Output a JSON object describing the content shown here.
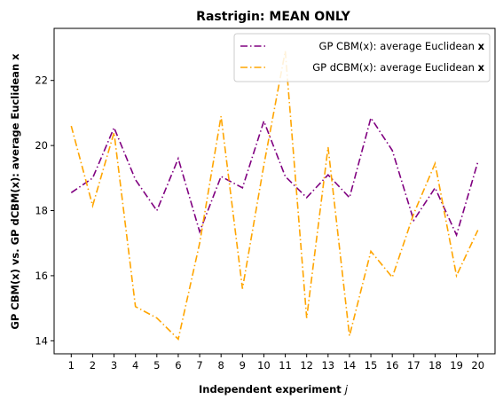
{
  "chart_data": {
    "type": "line",
    "title": "Rastrigin: MEAN ONLY",
    "xlabel": "Independent experiment j",
    "ylabel": "GP CBM(x) vs. GP dCBM(x): average Euclidean x",
    "x": [
      1,
      2,
      3,
      4,
      5,
      6,
      7,
      8,
      9,
      10,
      11,
      12,
      13,
      14,
      15,
      16,
      17,
      18,
      19,
      20
    ],
    "xlim": [
      0.2,
      20.8
    ],
    "ylim": [
      13.6,
      23.6
    ],
    "y_ticks": [
      14,
      16,
      18,
      20,
      22
    ],
    "grid": false,
    "legend_position": "top-right",
    "series": [
      {
        "name": "GP CBM(x): average Euclidean x",
        "color": "#800080",
        "values": [
          18.55,
          19.0,
          20.55,
          18.95,
          18.0,
          19.6,
          17.35,
          19.05,
          18.7,
          20.75,
          19.05,
          18.4,
          19.1,
          18.4,
          20.85,
          19.85,
          17.7,
          18.7,
          17.25,
          19.5
        ]
      },
      {
        "name": "GP dCBM(x): average Euclidean x",
        "color": "#FFA500",
        "values": [
          20.6,
          18.15,
          20.4,
          15.05,
          14.7,
          14.05,
          17.0,
          20.9,
          15.6,
          19.4,
          22.9,
          14.7,
          19.95,
          14.15,
          16.75,
          15.95,
          17.9,
          19.45,
          16.0,
          17.4
        ]
      }
    ]
  }
}
